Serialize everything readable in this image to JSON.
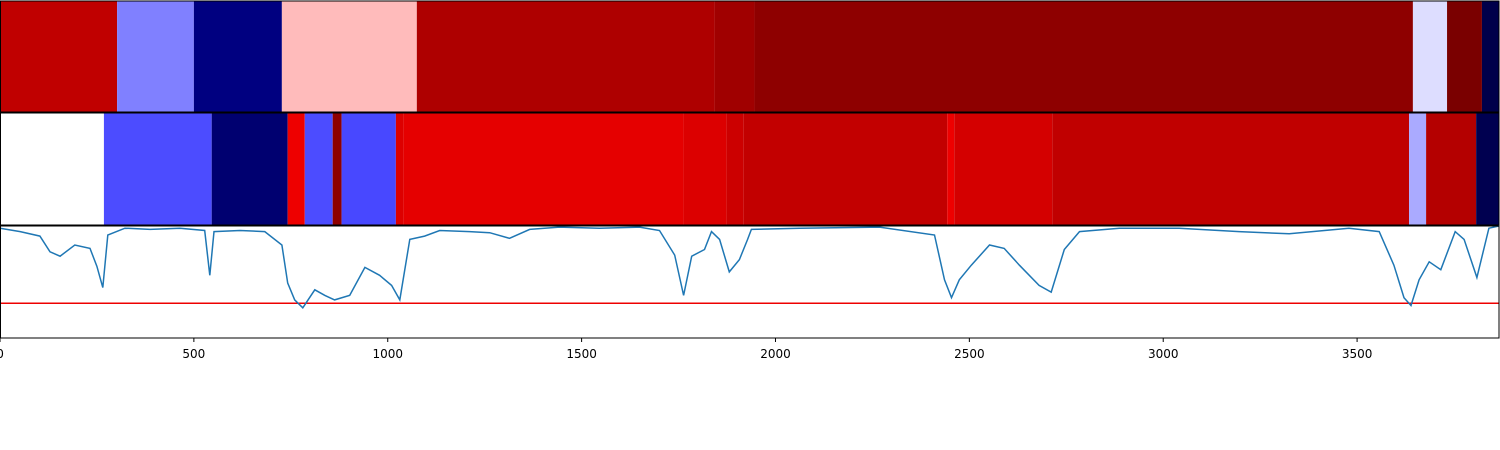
{
  "chart_data": {
    "type": "segments-and-line",
    "xlim": [
      0,
      3866
    ],
    "xticks": [
      0,
      500,
      1000,
      1500,
      2000,
      2500,
      3000,
      3500
    ],
    "strips": [
      {
        "segments": [
          {
            "start": 0,
            "end": 302,
            "color": "#c00000"
          },
          {
            "start": 302,
            "end": 500,
            "color": "#8080ff"
          },
          {
            "start": 500,
            "end": 727,
            "color": "#000080"
          },
          {
            "start": 727,
            "end": 1075,
            "color": "#ffbbbb"
          },
          {
            "start": 1075,
            "end": 1843,
            "color": "#ae0000"
          },
          {
            "start": 1843,
            "end": 1946,
            "color": "#a00000"
          },
          {
            "start": 1946,
            "end": 3644,
            "color": "#8e0000"
          },
          {
            "start": 3644,
            "end": 3732,
            "color": "#ddddff"
          },
          {
            "start": 3732,
            "end": 3822,
            "color": "#7a0000"
          },
          {
            "start": 3822,
            "end": 3866,
            "color": "#00004a"
          }
        ]
      },
      {
        "segments": [
          {
            "start": 0,
            "end": 268,
            "color": "#ffffff"
          },
          {
            "start": 268,
            "end": 546,
            "color": "#4c4cff"
          },
          {
            "start": 546,
            "end": 742,
            "color": "#000070"
          },
          {
            "start": 742,
            "end": 786,
            "color": "#ee0000"
          },
          {
            "start": 786,
            "end": 858,
            "color": "#4c4cff"
          },
          {
            "start": 858,
            "end": 881,
            "color": "#8e0000"
          },
          {
            "start": 881,
            "end": 1021,
            "color": "#4848ff"
          },
          {
            "start": 1021,
            "end": 1041,
            "color": "#dd0000"
          },
          {
            "start": 1041,
            "end": 1763,
            "color": "#e50000"
          },
          {
            "start": 1763,
            "end": 1874,
            "color": "#dc0000"
          },
          {
            "start": 1874,
            "end": 1918,
            "color": "#cc0000"
          },
          {
            "start": 1918,
            "end": 2443,
            "color": "#c20000"
          },
          {
            "start": 2443,
            "end": 2461,
            "color": "#ee0000"
          },
          {
            "start": 2461,
            "end": 2714,
            "color": "#d40000"
          },
          {
            "start": 2714,
            "end": 3634,
            "color": "#c00000"
          },
          {
            "start": 3634,
            "end": 3678,
            "color": "#aaaaff"
          },
          {
            "start": 3678,
            "end": 3807,
            "color": "#b40000"
          },
          {
            "start": 3807,
            "end": 3866,
            "color": "#000050"
          }
        ]
      }
    ],
    "line": {
      "color": "#1f77b4",
      "ylim": [
        0,
        1
      ],
      "threshold": 0.31,
      "threshold_color": "#ee0000",
      "x": [
        0,
        52,
        103,
        129,
        155,
        193,
        232,
        250,
        265,
        278,
        322,
        387,
        464,
        528,
        541,
        552,
        619,
        683,
        727,
        742,
        760,
        781,
        812,
        838,
        863,
        902,
        941,
        979,
        1010,
        1031,
        1057,
        1095,
        1134,
        1211,
        1263,
        1314,
        1366,
        1443,
        1546,
        1649,
        1701,
        1740,
        1763,
        1784,
        1817,
        1835,
        1856,
        1881,
        1907,
        1928,
        1938,
        2062,
        2268,
        2410,
        2436,
        2454,
        2474,
        2505,
        2552,
        2590,
        2629,
        2680,
        2711,
        2745,
        2784,
        2887,
        3041,
        3196,
        3325,
        3479,
        3557,
        3595,
        3621,
        3639,
        3660,
        3686,
        3716,
        3753,
        3776,
        3809,
        3840,
        3866
      ],
      "values": [
        0.98,
        0.95,
        0.91,
        0.77,
        0.73,
        0.83,
        0.8,
        0.64,
        0.45,
        0.92,
        0.98,
        0.97,
        0.98,
        0.96,
        0.56,
        0.95,
        0.96,
        0.95,
        0.83,
        0.49,
        0.34,
        0.27,
        0.43,
        0.38,
        0.34,
        0.38,
        0.63,
        0.56,
        0.47,
        0.34,
        0.88,
        0.91,
        0.96,
        0.95,
        0.94,
        0.89,
        0.97,
        0.99,
        0.98,
        0.99,
        0.96,
        0.74,
        0.38,
        0.73,
        0.79,
        0.95,
        0.88,
        0.59,
        0.7,
        0.88,
        0.97,
        0.98,
        0.99,
        0.92,
        0.52,
        0.36,
        0.52,
        0.65,
        0.83,
        0.8,
        0.65,
        0.47,
        0.41,
        0.79,
        0.95,
        0.98,
        0.98,
        0.95,
        0.93,
        0.98,
        0.95,
        0.65,
        0.36,
        0.29,
        0.52,
        0.68,
        0.61,
        0.95,
        0.88,
        0.54,
        0.98,
        1.0
      ]
    }
  }
}
